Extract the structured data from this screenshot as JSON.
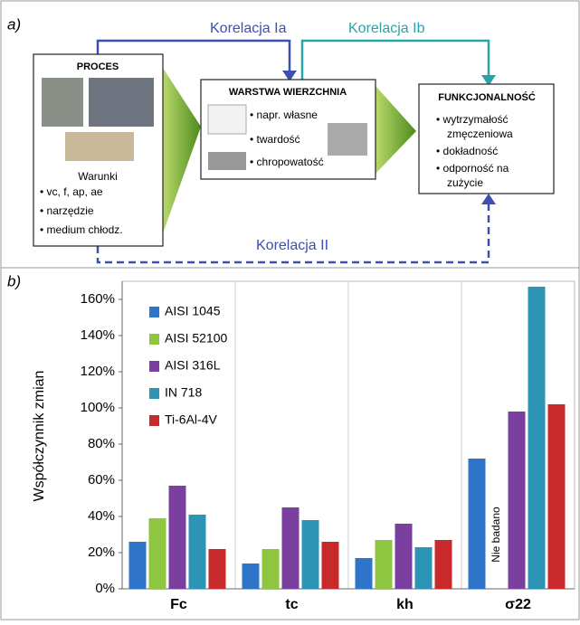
{
  "diagram": {
    "panel_label": "a)",
    "proces": {
      "title": "PROCES",
      "subtitle": "Warunki",
      "items": [
        "• vc, f, ap, ae",
        "• narzędzie",
        "• medium chłodz."
      ]
    },
    "warstwa": {
      "title": "WARSTWA WIERZCHNIA",
      "items": [
        "• napr. własne",
        "• twardość",
        "• chropowatość"
      ]
    },
    "funkcjonalnosc": {
      "title": "FUNKCJONALNOŚĆ",
      "items": [
        "• wytrzymałość",
        "zmęczeniowa",
        "• dokładność",
        "• odporność na",
        "zużycie"
      ]
    },
    "correlations": [
      "Korelacja Ia",
      "Korelacja Ib",
      "Korelacja II"
    ]
  },
  "chart_data": {
    "type": "bar",
    "panel_label": "b)",
    "y_label": "Współczynnik zmian",
    "categories": [
      "Fc",
      "tc",
      "kh",
      "σ22"
    ],
    "series": [
      {
        "name": "AISI 1045",
        "color": "#2e75c9",
        "values": [
          26,
          14,
          17,
          72
        ]
      },
      {
        "name": "AISI 52100",
        "color": "#8fc63f",
        "values": [
          39,
          22,
          27,
          null
        ]
      },
      {
        "name": "AISI 316L",
        "color": "#7b3fa0",
        "values": [
          57,
          45,
          36,
          98
        ]
      },
      {
        "name": "IN 718",
        "color": "#2c95b5",
        "values": [
          41,
          38,
          23,
          167
        ]
      },
      {
        "name": "Ti-6Al-4V",
        "color": "#c8292b",
        "values": [
          22,
          26,
          27,
          102
        ]
      }
    ],
    "annotation": "Nie badano",
    "ylim": [
      0,
      170
    ],
    "yticks": [
      {
        "value": 0,
        "label": "0%"
      },
      {
        "value": 20,
        "label": "20%"
      },
      {
        "value": 40,
        "label": "40%"
      },
      {
        "value": 60,
        "label": "60%"
      },
      {
        "value": 80,
        "label": "80%"
      },
      {
        "value": 100,
        "label": "100%"
      },
      {
        "value": 120,
        "label": "120%"
      },
      {
        "value": 140,
        "label": "140%"
      },
      {
        "value": 160,
        "label": "160%"
      }
    ],
    "legend": "upper-left"
  }
}
